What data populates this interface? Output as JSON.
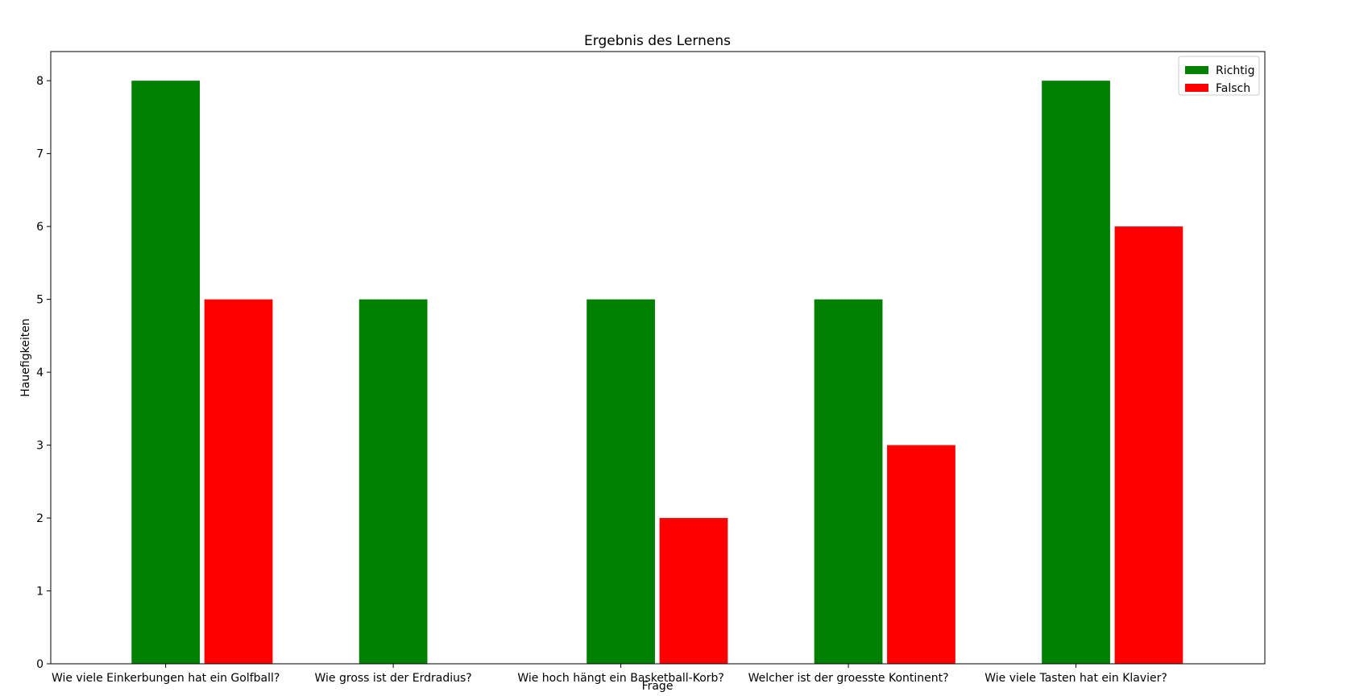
{
  "chart_data": {
    "type": "bar",
    "title": "Ergebnis des Lernens",
    "xlabel": "Frage",
    "ylabel": "Hauefigkeiten",
    "categories": [
      "Wie viele Einkerbungen hat ein Golfball?",
      "Wie gross ist der Erdradius?",
      "Wie hoch hängt ein Basketball-Korb?",
      "Welcher ist der groesste Kontinent?",
      "Wie viele Tasten hat ein Klavier?"
    ],
    "series": [
      {
        "name": "Richtig",
        "color": "#008000",
        "values": [
          8,
          5,
          5,
          5,
          8
        ]
      },
      {
        "name": "Falsch",
        "color": "#ff0000",
        "values": [
          5,
          0,
          2,
          3,
          6
        ]
      }
    ],
    "ylim": [
      0,
      8.4
    ],
    "yticks": [
      0,
      1,
      2,
      3,
      4,
      5,
      6,
      7,
      8
    ],
    "grid": false,
    "legend_position": "top-right"
  }
}
